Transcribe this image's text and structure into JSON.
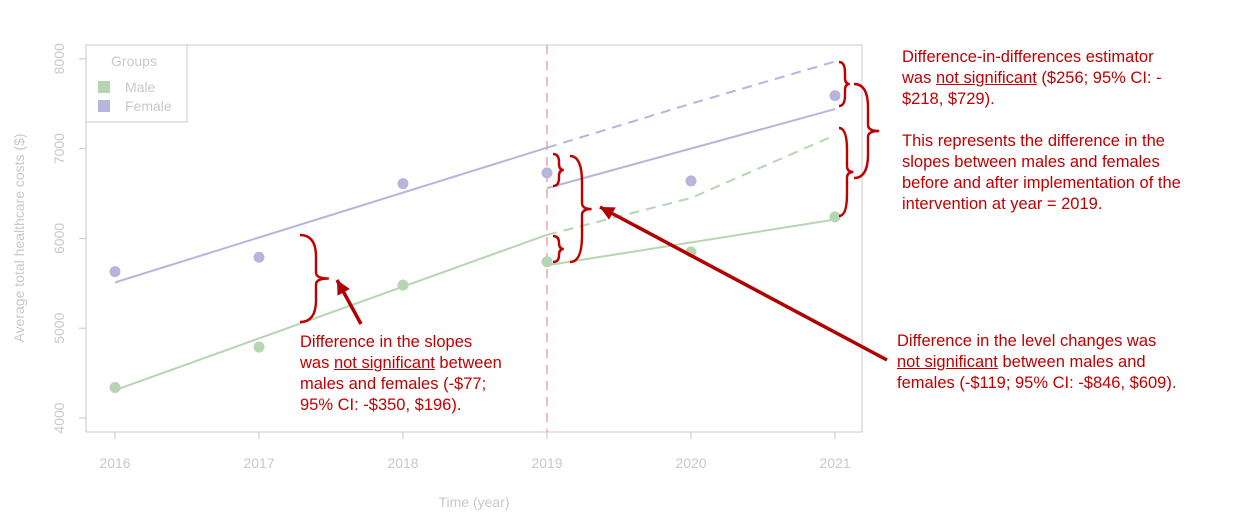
{
  "chart_data": {
    "type": "scatter",
    "xlabel": "Time (year)",
    "ylabel": "Average total healthcare costs ($)",
    "x_ticks": [
      "2016",
      "2017",
      "2018",
      "2019",
      "2020",
      "2021"
    ],
    "y_ticks": [
      "4000",
      "5000",
      "6000",
      "7000",
      "8000"
    ],
    "xlim": [
      2016,
      2021
    ],
    "ylim": [
      3880,
      8150
    ],
    "intervention_year": 2019,
    "grid": false,
    "legend": {
      "title": "Groups",
      "position": "top-left"
    },
    "series": [
      {
        "name": "Male",
        "color": "#b5d6b2",
        "points": [
          [
            2016,
            4340
          ],
          [
            2017,
            4790
          ],
          [
            2018,
            5480
          ],
          [
            2019,
            5740
          ],
          [
            2020,
            5850
          ],
          [
            2021,
            6240
          ]
        ],
        "pre_fit": [
          [
            2016,
            4310
          ],
          [
            2019,
            6040
          ]
        ],
        "post_fit": [
          [
            2019,
            5700
          ],
          [
            2021,
            6210
          ]
        ],
        "counterfactual": [
          [
            2019,
            6040
          ],
          [
            2020,
            6450
          ],
          [
            2021,
            7150
          ]
        ]
      },
      {
        "name": "Female",
        "color": "#b7b5dc",
        "points": [
          [
            2016,
            5630
          ],
          [
            2017,
            5790
          ],
          [
            2018,
            6610
          ],
          [
            2019,
            6730
          ],
          [
            2020,
            6640
          ],
          [
            2021,
            7590
          ]
        ],
        "pre_fit": [
          [
            2016,
            5510
          ],
          [
            2019,
            7010
          ]
        ],
        "post_fit": [
          [
            2019,
            6560
          ],
          [
            2021,
            7440
          ]
        ],
        "counterfactual": [
          [
            2019,
            7010
          ],
          [
            2020,
            7500
          ],
          [
            2021,
            7970
          ]
        ]
      }
    ]
  },
  "annotations": {
    "slopes": {
      "line1": "Difference in the slopes",
      "line2_pre": "was ",
      "line2_underlined": "not significant",
      "line2_post": " between",
      "line3": "males and females (-$77;",
      "line4": "95% CI: -$350, $196)."
    },
    "level": {
      "line1": "Difference in the level changes was",
      "line2_underlined": "not significant",
      "line2_post": " between males and",
      "line3": "females (-$119; 95% CI: -$846, $609)."
    },
    "did": {
      "line1": "Difference-in-differences estimator",
      "line2_pre": "was ",
      "line2_underlined": "not significant",
      "line2_post": " ($256; 95% CI: -",
      "line3": "$218, $729).",
      "line4": "This represents the difference in the",
      "line5": "slopes between males and females",
      "line6": "before and after implementation of the",
      "line7": "intervention at year = 2019."
    }
  },
  "colors": {
    "annotation": "#c00000",
    "axis": "#c8c8c8",
    "intervention_line": "#f4b8b8"
  }
}
